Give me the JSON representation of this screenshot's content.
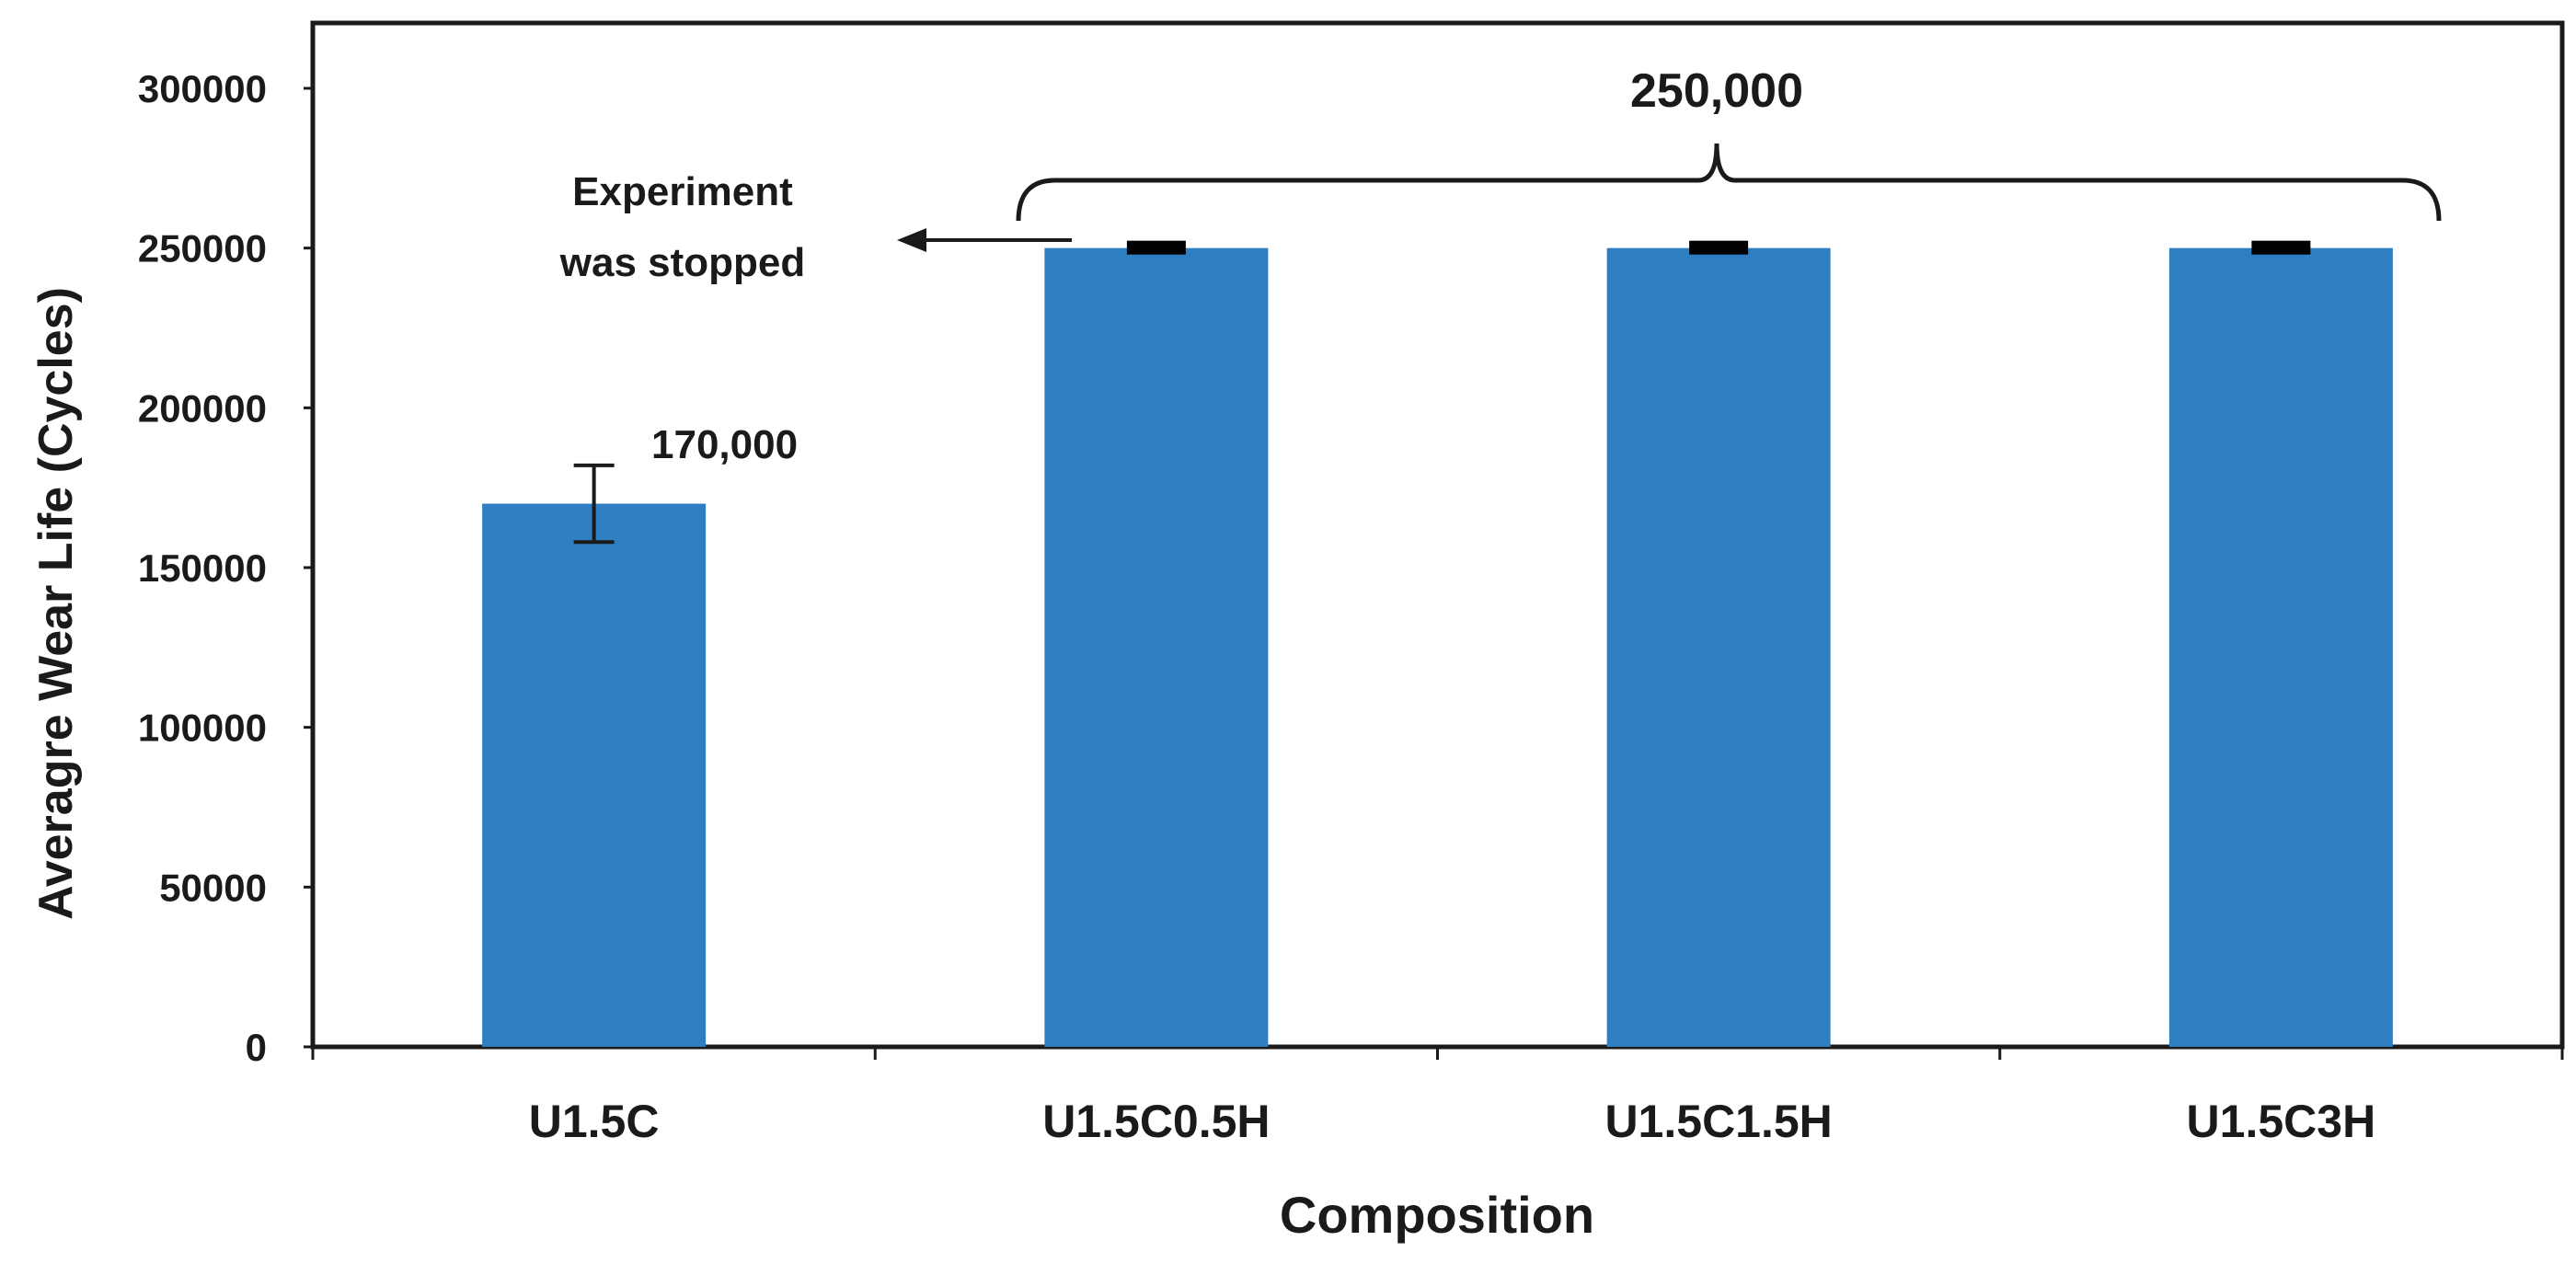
{
  "chart_data": {
    "type": "bar",
    "title": "",
    "xlabel": "Composition",
    "ylabel": "Averagre Wear Life (Cycles)",
    "categories": [
      "U1.5C",
      "U1.5C0.5H",
      "U1.5C1.5H",
      "U1.5C3H"
    ],
    "values": [
      170000,
      250000,
      250000,
      250000
    ],
    "error": [
      12000,
      0,
      0,
      0
    ],
    "ylim": [
      0,
      300000
    ],
    "yticks": [
      "0",
      "50000",
      "100000",
      "150000",
      "200000",
      "250000",
      "300000"
    ],
    "grid": false,
    "legend": "none",
    "bar_color": "#2e7fc1",
    "annotations": {
      "u15c_value": "170,000",
      "group_value": "250,000",
      "stopped_line1": "Experiment",
      "stopped_line2": "was stopped"
    }
  }
}
